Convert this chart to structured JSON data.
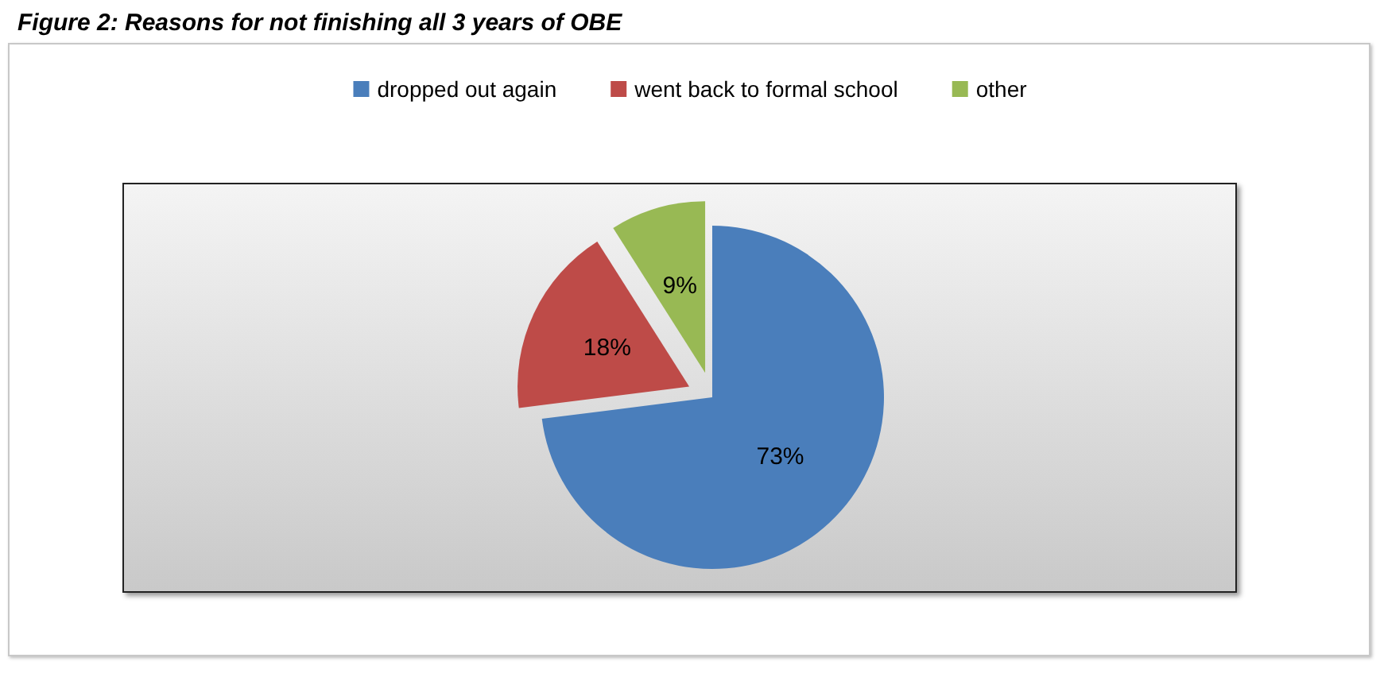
{
  "chart_data": {
    "type": "pie",
    "title": "Figure 2: Reasons for not finishing all 3 years of OBE",
    "categories": [
      "dropped out again",
      "went back to formal school",
      "other"
    ],
    "values": [
      73,
      18,
      9
    ],
    "colors": [
      "#4a7ebb",
      "#be4b48",
      "#98b954"
    ],
    "value_labels": [
      "73%",
      "18%",
      "9%"
    ],
    "legend": "top"
  }
}
